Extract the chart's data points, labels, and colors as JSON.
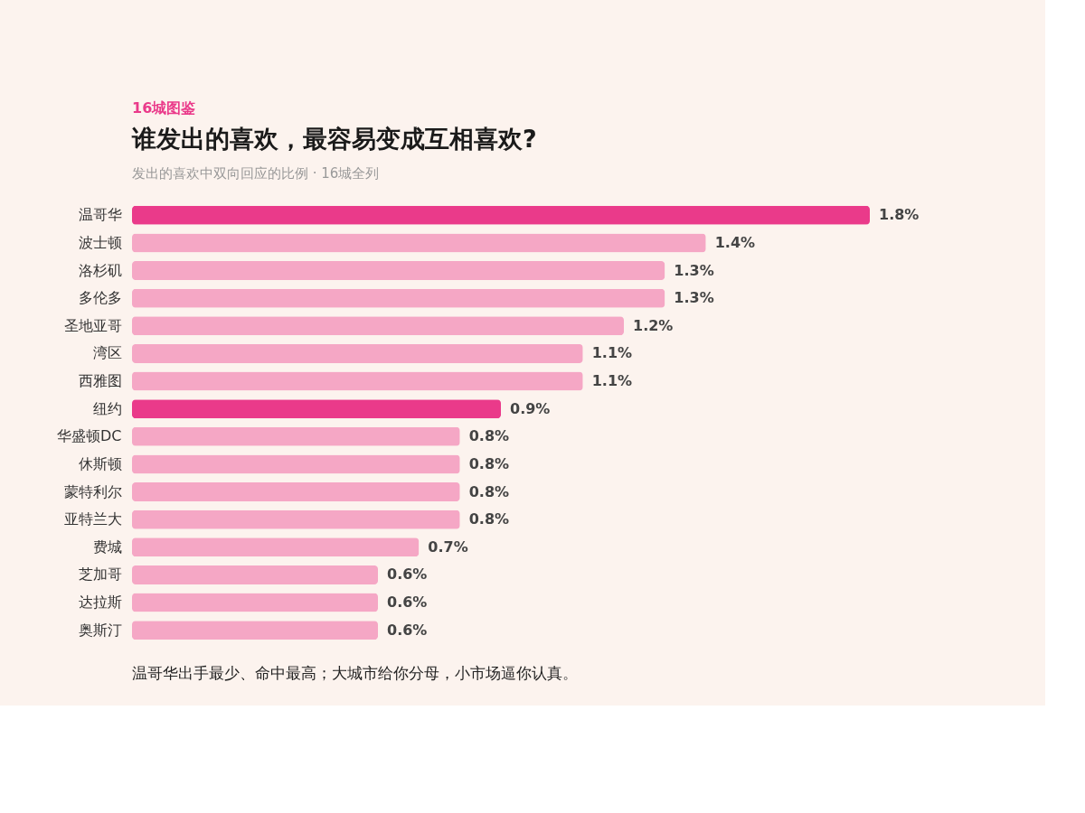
{
  "chart_data": {
    "type": "bar",
    "orientation": "horizontal",
    "title": "谁发出的喜欢，最容易变成互相喜欢?",
    "subtitle": "发出的喜欢中双向回应的比例 · 16城全列",
    "annotations": [
      "16城图鉴",
      "温哥华出手最少、命中最高；大城市给你分母，小市场逼你认真。"
    ],
    "categories": [
      "温哥华",
      "波士顿",
      "洛杉矶",
      "多伦多",
      "圣地亚哥",
      "湾区",
      "西雅图",
      "纽约",
      "华盛顿DC",
      "休斯顿",
      "蒙特利尔",
      "亚特兰大",
      "费城",
      "芝加哥",
      "达拉斯",
      "奥斯汀"
    ],
    "values": [
      1.8,
      1.4,
      1.3,
      1.3,
      1.2,
      1.1,
      1.1,
      0.9,
      0.8,
      0.8,
      0.8,
      0.8,
      0.7,
      0.6,
      0.6,
      0.6
    ],
    "value_labels": [
      "1.8%",
      "1.4%",
      "1.3%",
      "1.3%",
      "1.2%",
      "1.1%",
      "1.1%",
      "0.9%",
      "0.8%",
      "0.8%",
      "0.8%",
      "0.8%",
      "0.7%",
      "0.6%",
      "0.6%",
      "0.6%"
    ],
    "colors": [
      "#ea3a8a",
      "#f5a7c5",
      "#f5a7c5",
      "#f5a7c5",
      "#f5a7c5",
      "#f5a7c5",
      "#f5a7c5",
      "#ea3a8a",
      "#f5a7c5",
      "#f5a7c5",
      "#f5a7c5",
      "#f5a7c5",
      "#f5a7c5",
      "#f5a7c5",
      "#f5a7c5",
      "#f5a7c5"
    ]
  }
}
